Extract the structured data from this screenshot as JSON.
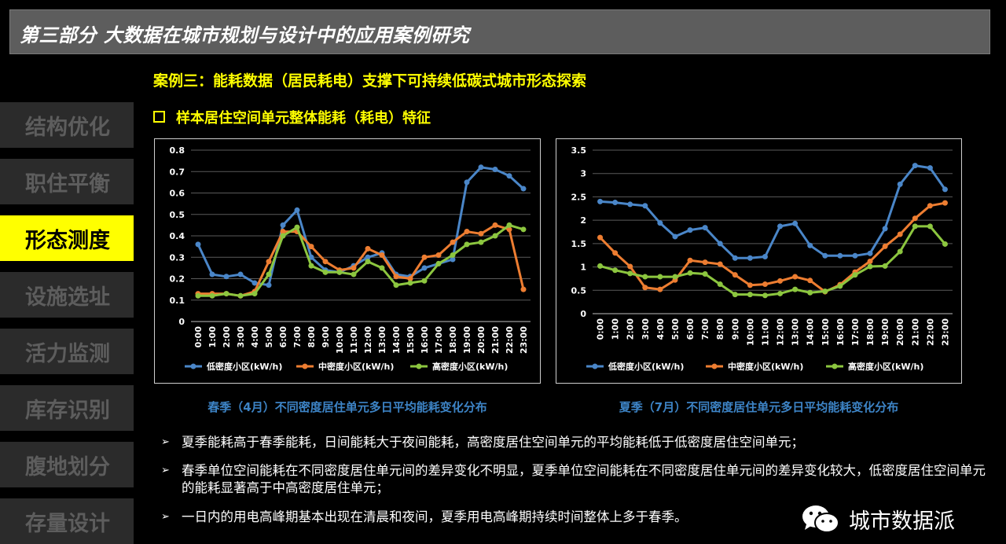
{
  "header": {
    "title": "第三部分  大数据在城市规划与设计中的应用案例研究"
  },
  "sidebar": {
    "items": [
      {
        "label": "结构优化",
        "active": false
      },
      {
        "label": "职住平衡",
        "active": false
      },
      {
        "label": "形态测度",
        "active": true
      },
      {
        "label": "设施选址",
        "active": false
      },
      {
        "label": "活力监测",
        "active": false
      },
      {
        "label": "库存识别",
        "active": false
      },
      {
        "label": "腹地划分",
        "active": false
      },
      {
        "label": "存量设计",
        "active": false
      }
    ]
  },
  "main": {
    "case_title": "案例三：能耗数据（居民耗电）支撑下可持续低碳式城市形态探索",
    "section_title": "样本居住空间单元整体能耗（耗电）特征",
    "bullets": [
      "夏季能耗高于春季能耗，日间能耗大于夜间能耗，高密度居住空间单元的平均能耗低于低密度居住空间单元；",
      "春季单位空间能耗在不同密度居住单元间的差异变化不明显，夏季单位空间能耗在不同密度居住单元间的差异变化较大，低密度居住空间单元的能耗显著高于中高密度居住单元；",
      "一日内的用电高峰期基本出现在清晨和夜间，夏季用电高峰期持续时间整体上多于春季。"
    ]
  },
  "watermark": {
    "text": "城市数据派",
    "icon": "wechat-icon"
  },
  "colors": {
    "accent": "#ffff00",
    "series_blue": "#4a86c8",
    "series_orange": "#ed7d31",
    "series_green": "#8cc63f",
    "caption": "#3d84c6"
  },
  "chart_data": [
    {
      "type": "line",
      "caption": "春季（4月）不同密度居住单元多日平均能耗变化分布",
      "categories": [
        "0:00",
        "1:00",
        "2:00",
        "3:00",
        "4:00",
        "5:00",
        "6:00",
        "7:00",
        "8:00",
        "9:00",
        "10:00",
        "11:00",
        "12:00",
        "13:00",
        "14:00",
        "15:00",
        "16:00",
        "17:00",
        "18:00",
        "19:00",
        "20:00",
        "21:00",
        "22:00",
        "23:00"
      ],
      "ylim": [
        0,
        0.8
      ],
      "yticks": [
        "0",
        "0.1",
        "0.2",
        "0.3",
        "0.4",
        "0.5",
        "0.6",
        "0.7",
        "0.8"
      ],
      "legend_position": "bottom",
      "grid": true,
      "series": [
        {
          "name": "低密度小区(kW/h)",
          "color": "#4a86c8",
          "values": [
            0.36,
            0.22,
            0.21,
            0.22,
            0.18,
            0.17,
            0.45,
            0.52,
            0.3,
            0.24,
            0.23,
            0.26,
            0.3,
            0.32,
            0.22,
            0.21,
            0.25,
            0.27,
            0.29,
            0.65,
            0.72,
            0.71,
            0.68,
            0.62
          ]
        },
        {
          "name": "中密度小区(kW/h)",
          "color": "#ed7d31",
          "values": [
            0.13,
            0.13,
            0.13,
            0.12,
            0.14,
            0.28,
            0.42,
            0.42,
            0.35,
            0.28,
            0.24,
            0.25,
            0.34,
            0.31,
            0.21,
            0.2,
            0.3,
            0.31,
            0.37,
            0.42,
            0.41,
            0.45,
            0.43,
            0.15
          ]
        },
        {
          "name": "高密度小区(kW/h)",
          "color": "#8cc63f",
          "values": [
            0.12,
            0.12,
            0.13,
            0.12,
            0.13,
            0.22,
            0.4,
            0.44,
            0.26,
            0.23,
            0.23,
            0.22,
            0.28,
            0.25,
            0.17,
            0.18,
            0.19,
            0.27,
            0.31,
            0.36,
            0.37,
            0.4,
            0.45,
            0.43
          ]
        }
      ]
    },
    {
      "type": "line",
      "caption": "夏季（7月）不同密度居住单元多日平均能耗变化分布",
      "categories": [
        "0:00",
        "1:00",
        "2:00",
        "3:00",
        "4:00",
        "5:00",
        "6:00",
        "7:00",
        "8:00",
        "9:00",
        "10:00",
        "11:00",
        "12:00",
        "13:00",
        "14:00",
        "15:00",
        "16:00",
        "17:00",
        "18:00",
        "19:00",
        "20:00",
        "21:00",
        "22:00",
        "23:00"
      ],
      "ylim": [
        0,
        3.5
      ],
      "yticks": [
        "0",
        "0.5",
        "1",
        "1.5",
        "2",
        "2.5",
        "3",
        "3.5"
      ],
      "legend_position": "bottom",
      "grid": true,
      "series": [
        {
          "name": "低密度小区(kW/h)",
          "color": "#4a86c8",
          "values": [
            2.4,
            2.38,
            2.34,
            2.31,
            1.94,
            1.65,
            1.79,
            1.84,
            1.5,
            1.19,
            1.19,
            1.22,
            1.87,
            1.93,
            1.46,
            1.24,
            1.24,
            1.24,
            1.29,
            1.82,
            2.77,
            3.17,
            3.12,
            2.66
          ]
        },
        {
          "name": "中密度小区(kW/h)",
          "color": "#ed7d31",
          "values": [
            1.63,
            1.3,
            1.01,
            0.56,
            0.52,
            0.72,
            1.14,
            1.1,
            1.06,
            0.83,
            0.61,
            0.63,
            0.7,
            0.79,
            0.71,
            0.47,
            0.62,
            0.89,
            1.12,
            1.44,
            1.7,
            2.04,
            2.31,
            2.37
          ]
        },
        {
          "name": "高密度小区(kW/h)",
          "color": "#8cc63f",
          "values": [
            1.02,
            0.93,
            0.86,
            0.79,
            0.79,
            0.79,
            0.87,
            0.85,
            0.63,
            0.41,
            0.41,
            0.39,
            0.43,
            0.52,
            0.45,
            0.48,
            0.59,
            0.83,
            1.01,
            1.02,
            1.33,
            1.87,
            1.87,
            1.49
          ]
        }
      ]
    }
  ]
}
